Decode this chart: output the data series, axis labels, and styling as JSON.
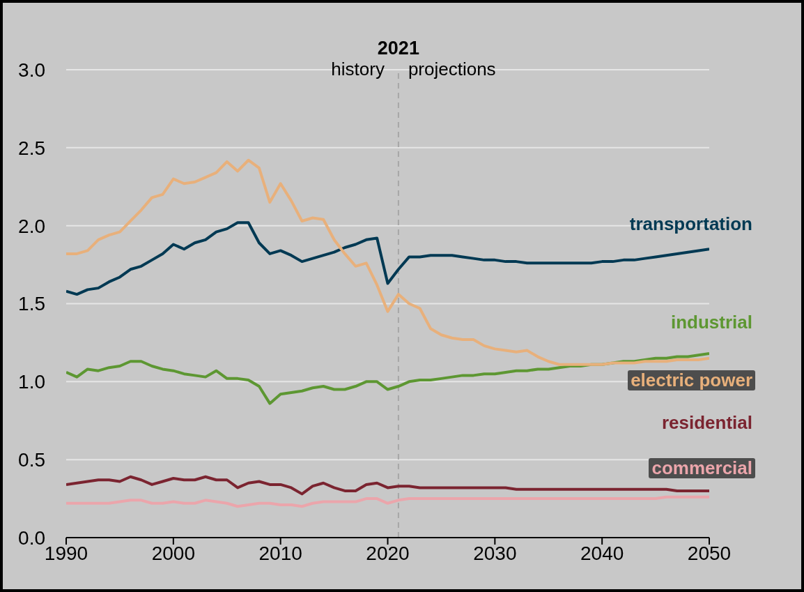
{
  "chart_data": {
    "type": "line",
    "x": [
      1990,
      1991,
      1992,
      1993,
      1994,
      1995,
      1996,
      1997,
      1998,
      1999,
      2000,
      2001,
      2002,
      2003,
      2004,
      2005,
      2006,
      2007,
      2008,
      2009,
      2010,
      2011,
      2012,
      2013,
      2014,
      2015,
      2016,
      2017,
      2018,
      2019,
      2020,
      2021,
      2022,
      2023,
      2024,
      2025,
      2026,
      2027,
      2028,
      2029,
      2030,
      2031,
      2032,
      2033,
      2034,
      2035,
      2036,
      2037,
      2038,
      2039,
      2040,
      2041,
      2042,
      2043,
      2044,
      2045,
      2046,
      2047,
      2048,
      2049,
      2050
    ],
    "series": [
      {
        "name": "transportation",
        "color": "#003953",
        "values": [
          1.58,
          1.56,
          1.59,
          1.6,
          1.64,
          1.67,
          1.72,
          1.74,
          1.78,
          1.82,
          1.88,
          1.85,
          1.89,
          1.91,
          1.96,
          1.98,
          2.02,
          2.02,
          1.89,
          1.82,
          1.84,
          1.81,
          1.77,
          1.79,
          1.81,
          1.83,
          1.86,
          1.88,
          1.91,
          1.92,
          1.63,
          1.72,
          1.8,
          1.8,
          1.81,
          1.81,
          1.81,
          1.8,
          1.79,
          1.78,
          1.78,
          1.77,
          1.77,
          1.76,
          1.76,
          1.76,
          1.76,
          1.76,
          1.76,
          1.76,
          1.77,
          1.77,
          1.78,
          1.78,
          1.79,
          1.8,
          1.81,
          1.82,
          1.83,
          1.84,
          1.85
        ]
      },
      {
        "name": "industrial",
        "color": "#5d9732",
        "values": [
          1.06,
          1.03,
          1.08,
          1.07,
          1.09,
          1.1,
          1.13,
          1.13,
          1.1,
          1.08,
          1.07,
          1.05,
          1.04,
          1.03,
          1.07,
          1.02,
          1.02,
          1.01,
          0.97,
          0.86,
          0.92,
          0.93,
          0.94,
          0.96,
          0.97,
          0.95,
          0.95,
          0.97,
          1.0,
          1.0,
          0.95,
          0.97,
          1.0,
          1.01,
          1.01,
          1.02,
          1.03,
          1.04,
          1.04,
          1.05,
          1.05,
          1.06,
          1.07,
          1.07,
          1.08,
          1.08,
          1.09,
          1.1,
          1.1,
          1.11,
          1.11,
          1.12,
          1.13,
          1.13,
          1.14,
          1.15,
          1.15,
          1.16,
          1.16,
          1.17,
          1.18
        ]
      },
      {
        "name": "electric power",
        "color": "#e8b07b",
        "values": [
          1.82,
          1.82,
          1.84,
          1.91,
          1.94,
          1.96,
          2.03,
          2.1,
          2.18,
          2.2,
          2.3,
          2.27,
          2.28,
          2.31,
          2.34,
          2.41,
          2.35,
          2.42,
          2.37,
          2.15,
          2.27,
          2.16,
          2.03,
          2.05,
          2.04,
          1.91,
          1.82,
          1.74,
          1.76,
          1.62,
          1.45,
          1.56,
          1.5,
          1.47,
          1.34,
          1.3,
          1.28,
          1.27,
          1.27,
          1.23,
          1.21,
          1.2,
          1.19,
          1.2,
          1.16,
          1.13,
          1.11,
          1.11,
          1.11,
          1.11,
          1.11,
          1.12,
          1.12,
          1.12,
          1.13,
          1.13,
          1.13,
          1.14,
          1.14,
          1.14,
          1.15
        ]
      },
      {
        "name": "residential",
        "color": "#7b2430",
        "values": [
          0.34,
          0.35,
          0.36,
          0.37,
          0.37,
          0.36,
          0.39,
          0.37,
          0.34,
          0.36,
          0.38,
          0.37,
          0.37,
          0.39,
          0.37,
          0.37,
          0.32,
          0.35,
          0.36,
          0.34,
          0.34,
          0.32,
          0.28,
          0.33,
          0.35,
          0.32,
          0.3,
          0.3,
          0.34,
          0.35,
          0.32,
          0.33,
          0.33,
          0.32,
          0.32,
          0.32,
          0.32,
          0.32,
          0.32,
          0.32,
          0.32,
          0.32,
          0.31,
          0.31,
          0.31,
          0.31,
          0.31,
          0.31,
          0.31,
          0.31,
          0.31,
          0.31,
          0.31,
          0.31,
          0.31,
          0.31,
          0.31,
          0.3,
          0.3,
          0.3,
          0.3
        ]
      },
      {
        "name": "commercial",
        "color": "#eba5ab",
        "values": [
          0.22,
          0.22,
          0.22,
          0.22,
          0.22,
          0.23,
          0.24,
          0.24,
          0.22,
          0.22,
          0.23,
          0.22,
          0.22,
          0.24,
          0.23,
          0.22,
          0.2,
          0.21,
          0.22,
          0.22,
          0.21,
          0.21,
          0.2,
          0.22,
          0.23,
          0.23,
          0.23,
          0.23,
          0.25,
          0.25,
          0.22,
          0.24,
          0.25,
          0.25,
          0.25,
          0.25,
          0.25,
          0.25,
          0.25,
          0.25,
          0.25,
          0.25,
          0.25,
          0.25,
          0.25,
          0.25,
          0.25,
          0.25,
          0.25,
          0.25,
          0.25,
          0.25,
          0.25,
          0.25,
          0.25,
          0.25,
          0.26,
          0.26,
          0.26,
          0.26,
          0.26
        ]
      }
    ],
    "xlim": [
      1990,
      2050
    ],
    "xticks": [
      1990,
      2000,
      2010,
      2020,
      2030,
      2040,
      2050
    ],
    "ylim": [
      0,
      3
    ],
    "yticks": [
      {
        "value": 0,
        "label": "0.0"
      },
      {
        "value": 0.5,
        "label": "0.5"
      },
      {
        "value": 1,
        "label": "1.0"
      },
      {
        "value": 1.5,
        "label": "1.5"
      },
      {
        "value": 2,
        "label": "2.0"
      },
      {
        "value": 2.5,
        "label": "2.5"
      },
      {
        "value": 3,
        "label": "3.0"
      }
    ],
    "grid": "y",
    "marker": "none",
    "line_style": "solid",
    "ref_lines": [
      {
        "axis": "x",
        "value": 2021,
        "label": "2021",
        "color": "#a6a6a6",
        "line_style": "dashed"
      }
    ],
    "annotations": [
      {
        "text": "history",
        "x": 2021,
        "y": 3.0
      },
      {
        "text": "projections",
        "x": 2021,
        "y": 3.0
      }
    ]
  }
}
